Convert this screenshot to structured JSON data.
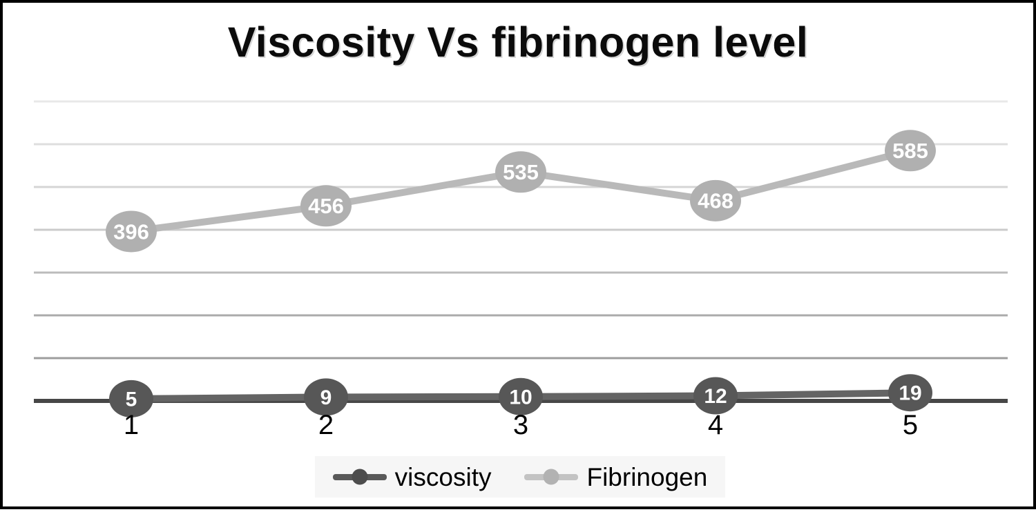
{
  "title": "Viscosity Vs fibrinogen level",
  "chart_data": {
    "type": "line",
    "title": "Viscosity Vs fibrinogen level",
    "categories": [
      "1",
      "2",
      "3",
      "4",
      "5"
    ],
    "series": [
      {
        "name": "viscosity",
        "values": [
          5,
          9,
          10,
          12,
          19
        ],
        "line_color": "#646464",
        "marker_color": "#575757",
        "label_color": "#ffffff"
      },
      {
        "name": "Fibrinogen",
        "values": [
          396,
          456,
          535,
          468,
          585
        ],
        "line_color": "#b9b9b9",
        "marker_color": "#b0b0b0",
        "label_color": "#ffffff"
      }
    ],
    "xlabel": "",
    "ylabel": "",
    "ylim": [
      0,
      700
    ],
    "gridline_step": 100,
    "grid": true,
    "axis_color": "#474747",
    "tick_label_color": "#000000",
    "data_labels": true,
    "legend_position": "bottom"
  }
}
